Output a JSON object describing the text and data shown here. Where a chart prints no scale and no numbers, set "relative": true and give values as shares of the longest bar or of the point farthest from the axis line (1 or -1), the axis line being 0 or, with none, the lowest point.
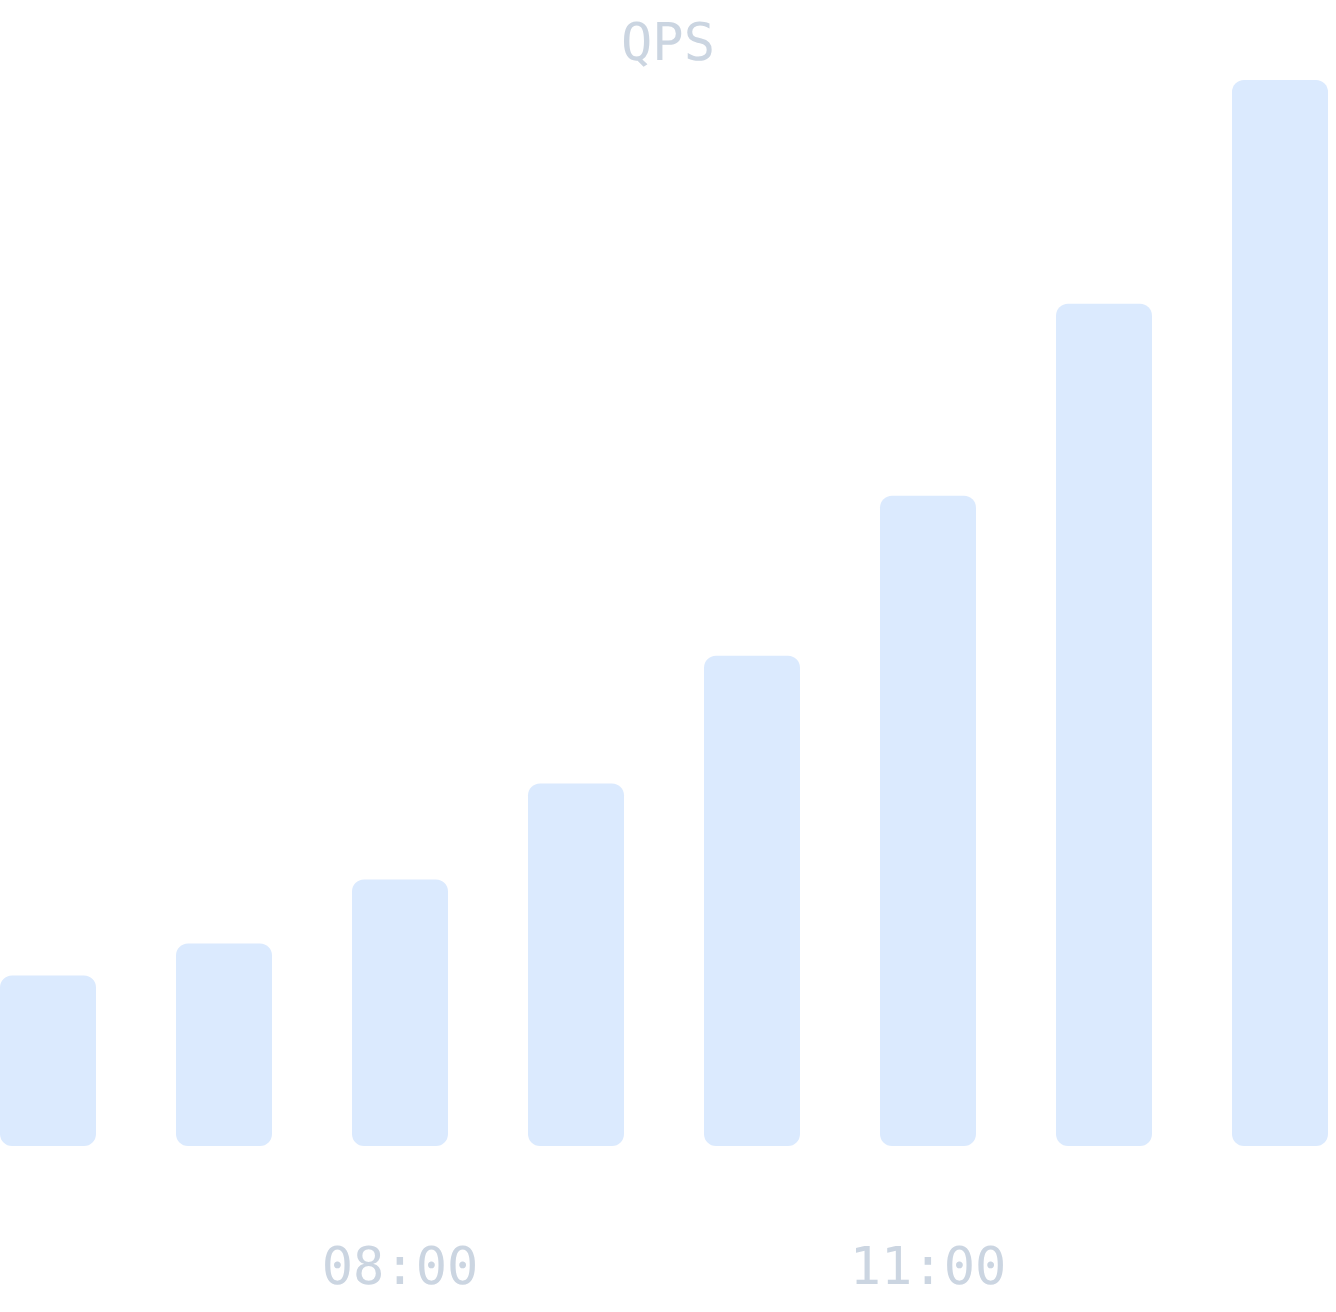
{
  "chart_data": {
    "type": "bar",
    "title": "QPS",
    "categories": [
      null,
      null,
      "08:00",
      null,
      null,
      "11:00",
      null,
      null
    ],
    "values": [
      0.16,
      0.19,
      0.25,
      0.34,
      0.46,
      0.61,
      0.79,
      1
    ],
    "color": "#dbeafe",
    "relative": true
  }
}
